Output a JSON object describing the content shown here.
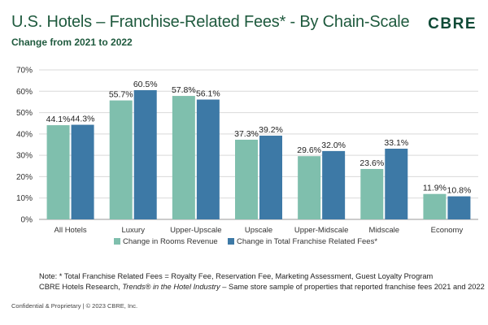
{
  "header": {
    "title": "U.S. Hotels – Franchise-Related Fees* - By Chain-Scale",
    "subtitle": "Change from 2021 to 2022",
    "logo_text": "CBRE"
  },
  "chart_data": {
    "type": "bar",
    "title": "U.S. Hotels – Franchise-Related Fees* - By Chain-Scale",
    "subtitle": "Change from 2021 to 2022",
    "categories": [
      "All Hotels",
      "Luxury",
      "Upper-Upscale",
      "Upscale",
      "Upper-Midscale",
      "Midscale",
      "Economy"
    ],
    "series": [
      {
        "name": "Change in Rooms Revenue",
        "color": "#7fbfad",
        "values": [
          44.1,
          55.7,
          57.8,
          37.3,
          29.6,
          23.6,
          11.9
        ]
      },
      {
        "name": "Change in Total Franchise Related Fees*",
        "color": "#3d79a6",
        "values": [
          44.3,
          60.5,
          56.1,
          39.2,
          32.0,
          33.1,
          10.8
        ]
      }
    ],
    "value_suffix": "%",
    "ylim": [
      0,
      70
    ],
    "yticks": [
      "0%",
      "10%",
      "20%",
      "30%",
      "40%",
      "50%",
      "60%",
      "70%"
    ],
    "xlabel": "",
    "ylabel": "",
    "grid": true,
    "legend_position": "bottom"
  },
  "notes": {
    "line1": "Note: *  Total Franchise Related Fees = Royalty Fee, Reservation Fee, Marketing Assessment, Guest Loyalty Program",
    "line2_prefix": "CBRE Hotels Research, ",
    "line2_italic": "Trends® in the Hotel Industry",
    "line2_suffix": " –   Same store sample of properties that reported franchise fees 2021 and 2022"
  },
  "footer": {
    "text": "Confidential & Proprietary | © 2023 CBRE, Inc."
  }
}
